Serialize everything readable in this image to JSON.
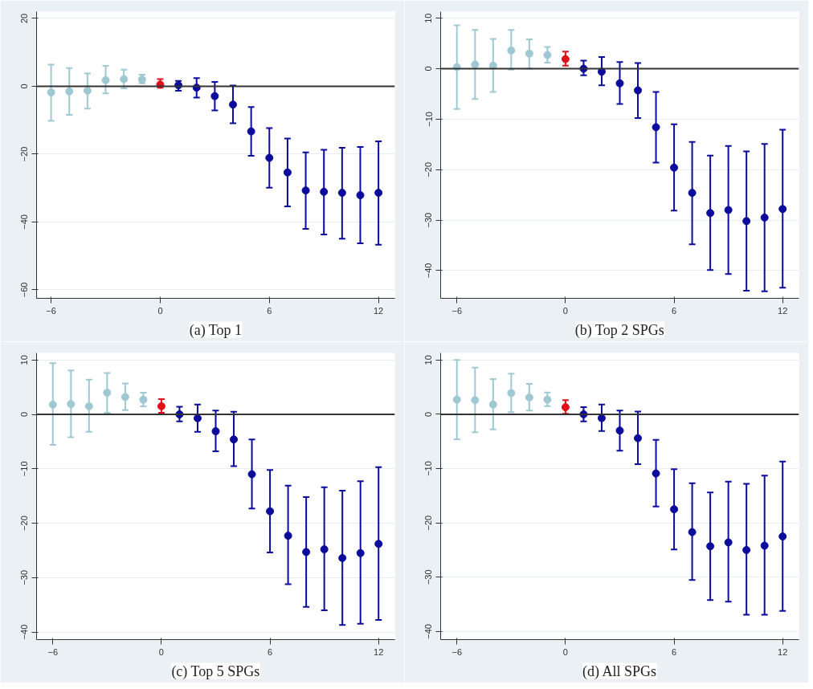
{
  "chart_data": [
    {
      "type": "scatter",
      "title": "(a) Top 1",
      "xlim": [
        -6.8,
        12.9
      ],
      "ylim": [
        -62.5,
        22
      ],
      "xticks": [
        -6,
        0,
        6,
        12
      ],
      "yticks": [
        -60,
        -40,
        -20,
        0,
        20
      ],
      "grid": "y",
      "marker": "circle",
      "ref_lines": [
        {
          "axis": "y",
          "value": 0,
          "color": "#333333"
        }
      ],
      "series": [
        {
          "color": "#9fc8d3",
          "x": [
            -6,
            -5,
            -4,
            -3,
            -2,
            -1
          ],
          "values": [
            -1.8,
            -1.5,
            -1.3,
            1.8,
            2.1,
            2.0
          ],
          "errors": [
            [
              -10.2,
              6.4
            ],
            [
              -8.4,
              5.4
            ],
            [
              -6.6,
              3.8
            ],
            [
              -2.1,
              6.0
            ],
            [
              -0.6,
              4.9
            ],
            [
              0.9,
              3.4
            ]
          ]
        },
        {
          "color": "#e0101a",
          "x": [
            0
          ],
          "values": [
            0.5
          ],
          "errors": [
            [
              -0.4,
              2.1
            ]
          ]
        },
        {
          "color": "#0b0b9c",
          "x": [
            1,
            2,
            3,
            4,
            5,
            6,
            7,
            8,
            9,
            10,
            11,
            12
          ],
          "values": [
            0.3,
            -0.4,
            -2.9,
            -5.4,
            -13.3,
            -21.1,
            -25.4,
            -30.7,
            -31.1,
            -31.4,
            -32.1,
            -31.4
          ],
          "errors": [
            [
              -1.3,
              1.6
            ],
            [
              -3.3,
              2.4
            ],
            [
              -7.1,
              1.3
            ],
            [
              -10.9,
              0.2
            ],
            [
              -20.5,
              -6.1
            ],
            [
              -29.9,
              -12.3
            ],
            [
              -35.4,
              -15.4
            ],
            [
              -42.0,
              -19.5
            ],
            [
              -43.7,
              -18.7
            ],
            [
              -44.9,
              -18.1
            ],
            [
              -46.3,
              -17.9
            ],
            [
              -46.7,
              -16.2
            ]
          ]
        }
      ]
    },
    {
      "type": "scatter",
      "title": "(b) Top 2 SPGs",
      "xlim": [
        -6.9,
        12.9
      ],
      "ylim": [
        -45.5,
        11.3
      ],
      "xticks": [
        -6,
        0,
        6,
        12
      ],
      "yticks": [
        -40,
        -30,
        -20,
        -10,
        0,
        10
      ],
      "grid": "y",
      "marker": "circle",
      "ref_lines": [
        {
          "axis": "y",
          "value": 0,
          "color": "#333333"
        }
      ],
      "series": [
        {
          "color": "#9fc8d3",
          "x": [
            -6,
            -5,
            -4,
            -3,
            -2,
            -1
          ],
          "values": [
            0.3,
            0.8,
            0.6,
            3.6,
            3.0,
            2.7
          ],
          "errors": [
            [
              -8.0,
              8.6
            ],
            [
              -6.0,
              7.7
            ],
            [
              -4.6,
              5.9
            ],
            [
              -0.2,
              7.7
            ],
            [
              0,
              5.8
            ],
            [
              1.2,
              4.3
            ]
          ]
        },
        {
          "color": "#e0101a",
          "x": [
            0
          ],
          "values": [
            1.9
          ],
          "errors": [
            [
              0.6,
              3.4
            ]
          ]
        },
        {
          "color": "#0b0b9c",
          "x": [
            1,
            2,
            3,
            4,
            5,
            6,
            7,
            8,
            9,
            10,
            11,
            12
          ],
          "values": [
            0,
            -0.6,
            -2.9,
            -4.3,
            -11.6,
            -19.6,
            -24.6,
            -28.6,
            -28.0,
            -30.2,
            -29.5,
            -27.8
          ],
          "errors": [
            [
              -1.3,
              1.6
            ],
            [
              -3.3,
              2.3
            ],
            [
              -7.0,
              1.3
            ],
            [
              -9.8,
              1.1
            ],
            [
              -18.6,
              -4.6
            ],
            [
              -28.1,
              -11.0
            ],
            [
              -34.8,
              -14.5
            ],
            [
              -39.9,
              -17.2
            ],
            [
              -40.7,
              -15.3
            ],
            [
              -44.0,
              -16.4
            ],
            [
              -44.1,
              -14.9
            ],
            [
              -43.4,
              -12.1
            ]
          ]
        }
      ]
    },
    {
      "type": "scatter",
      "title": "(c) Top 5 SPGs",
      "xlim": [
        -6.9,
        12.9
      ],
      "ylim": [
        -41.4,
        11.3
      ],
      "xticks": [
        -6,
        0,
        6,
        12
      ],
      "yticks": [
        -40,
        -30,
        -20,
        -10,
        0,
        10
      ],
      "grid": "y",
      "marker": "circle",
      "ref_lines": [
        {
          "axis": "y",
          "value": 0,
          "color": "#333333"
        }
      ],
      "series": [
        {
          "color": "#9fc8d3",
          "x": [
            -6,
            -5,
            -4,
            -3,
            -2,
            -1
          ],
          "values": [
            1.8,
            1.9,
            1.5,
            4.0,
            3.2,
            2.7
          ],
          "errors": [
            [
              -5.6,
              9.4
            ],
            [
              -4.2,
              8.1
            ],
            [
              -3.2,
              6.4
            ],
            [
              0.3,
              7.6
            ],
            [
              0.8,
              5.7
            ],
            [
              1.5,
              4.0
            ]
          ]
        },
        {
          "color": "#e0101a",
          "x": [
            0
          ],
          "values": [
            1.5
          ],
          "errors": [
            [
              0.3,
              2.8
            ]
          ]
        },
        {
          "color": "#0b0b9c",
          "x": [
            1,
            2,
            3,
            4,
            5,
            6,
            7,
            8,
            9,
            10,
            11,
            12
          ],
          "values": [
            0,
            -0.7,
            -3.1,
            -4.6,
            -11.0,
            -17.8,
            -22.3,
            -25.3,
            -24.8,
            -26.4,
            -25.5,
            -23.8
          ],
          "errors": [
            [
              -1.3,
              1.4
            ],
            [
              -3.2,
              1.8
            ],
            [
              -6.8,
              0.7
            ],
            [
              -9.5,
              0.5
            ],
            [
              -17.3,
              -4.6
            ],
            [
              -25.4,
              -10.2
            ],
            [
              -31.2,
              -13.1
            ],
            [
              -35.4,
              -15.2
            ],
            [
              -36.0,
              -13.4
            ],
            [
              -38.7,
              -14.0
            ],
            [
              -38.5,
              -12.3
            ],
            [
              -37.8,
              -9.7
            ]
          ]
        }
      ]
    },
    {
      "type": "scatter",
      "title": "(d) All SPGs",
      "xlim": [
        -6.9,
        12.9
      ],
      "ylim": [
        -41.5,
        11.3
      ],
      "xticks": [
        -6,
        0,
        6,
        12
      ],
      "yticks": [
        -40,
        -30,
        -20,
        -10,
        0,
        10
      ],
      "grid": "y",
      "marker": "circle",
      "ref_lines": [
        {
          "axis": "y",
          "value": 0,
          "color": "#333333"
        }
      ],
      "series": [
        {
          "color": "#9fc8d3",
          "x": [
            -6,
            -5,
            -4,
            -3,
            -2,
            -1
          ],
          "values": [
            2.7,
            2.6,
            1.8,
            3.9,
            3.1,
            2.7
          ],
          "errors": [
            [
              -4.6,
              10.0
            ],
            [
              -3.3,
              8.6
            ],
            [
              -2.8,
              6.5
            ],
            [
              0.4,
              7.5
            ],
            [
              0.7,
              5.6
            ],
            [
              1.5,
              4.0
            ]
          ]
        },
        {
          "color": "#e0101a",
          "x": [
            0
          ],
          "values": [
            1.3
          ],
          "errors": [
            [
              0.1,
              2.6
            ]
          ]
        },
        {
          "color": "#0b0b9c",
          "x": [
            1,
            2,
            3,
            4,
            5,
            6,
            7,
            8,
            9,
            10,
            11,
            12
          ],
          "values": [
            0,
            -0.7,
            -3.0,
            -4.4,
            -10.9,
            -17.5,
            -21.7,
            -24.3,
            -23.6,
            -25.0,
            -24.2,
            -22.5
          ],
          "errors": [
            [
              -1.3,
              1.3
            ],
            [
              -3.1,
              1.8
            ],
            [
              -6.7,
              0.7
            ],
            [
              -9.2,
              0.5
            ],
            [
              -17.0,
              -4.7
            ],
            [
              -24.9,
              -10.1
            ],
            [
              -30.5,
              -12.7
            ],
            [
              -34.2,
              -14.4
            ],
            [
              -34.5,
              -12.4
            ],
            [
              -36.9,
              -12.8
            ],
            [
              -36.9,
              -11.3
            ],
            [
              -36.2,
              -8.7
            ]
          ]
        }
      ]
    }
  ]
}
